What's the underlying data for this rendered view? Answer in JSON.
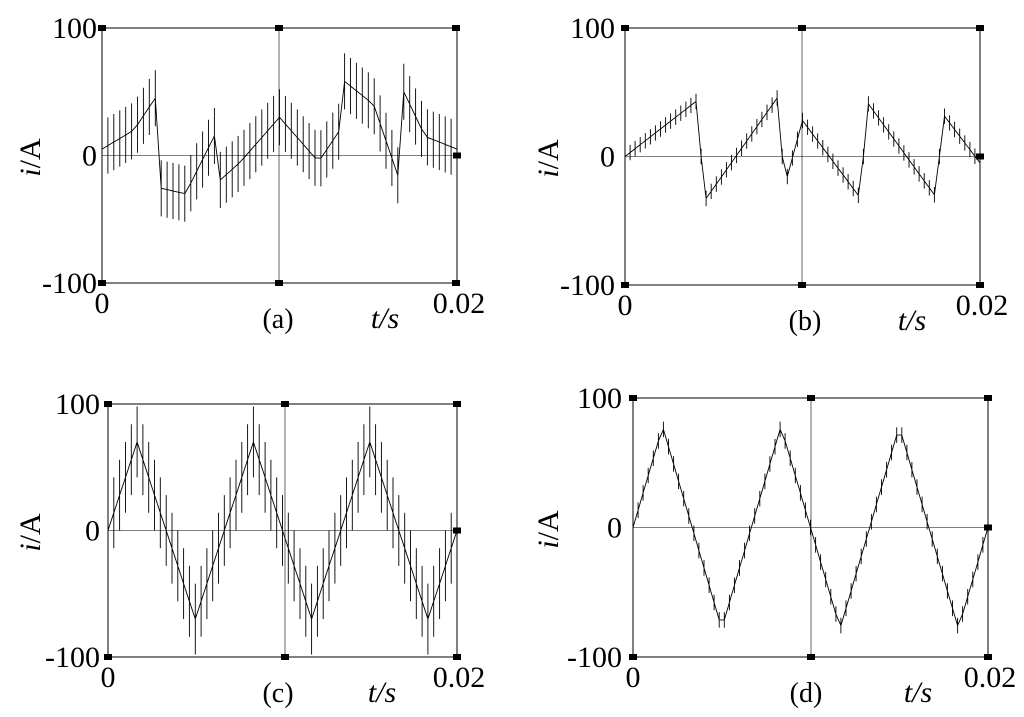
{
  "chart_data": [
    {
      "type": "line",
      "panel": "(a)",
      "xlabel": "t/s",
      "ylabel": "i/A",
      "ylabel_italic": "i",
      "ylabel_unit": "/A",
      "xlim": [
        0,
        0.02
      ],
      "ylim": [
        -100,
        100
      ],
      "x_tick_labels": [
        "0",
        "0.02"
      ],
      "y_tick_labels": [
        "100",
        "0",
        "-100"
      ],
      "grid": false,
      "series": [
        {
          "envelope": "six-step current with large switching ripple",
          "x": [
            0,
            0.0018,
            0.003,
            0.0031,
            0.0047,
            0.0065,
            0.0066,
            0.0078,
            0.01,
            0.0122,
            0.0134,
            0.0135,
            0.0153,
            0.0169,
            0.017,
            0.0182,
            0.02
          ],
          "y": [
            5,
            20,
            45,
            -25,
            -30,
            20,
            -20,
            -5,
            30,
            -5,
            20,
            60,
            40,
            -25,
            50,
            15,
            5
          ],
          "ripple_amplitude": 22
        }
      ]
    },
    {
      "type": "line",
      "panel": "(b)",
      "xlabel": "t/s",
      "ylabel": "i/A",
      "ylabel_italic": "i",
      "ylabel_unit": "/A",
      "xlim": [
        0,
        0.02
      ],
      "ylim": [
        -100,
        100
      ],
      "x_tick_labels": [
        "0",
        "0.02"
      ],
      "y_tick_labels": [
        "100",
        "0",
        "-100"
      ],
      "grid": false,
      "series": [
        {
          "envelope": "six-step current with small switching ripple",
          "x": [
            0,
            0.0042,
            0.0043,
            0.0088,
            0.0089,
            0.0134,
            0.0135,
            0.0177,
            0.0178,
            0.02
          ],
          "y": [
            0,
            45,
            -38,
            50,
            -28,
            45,
            -35,
            45,
            35,
            -5
          ],
          "apex": [
            0.01,
            28
          ],
          "ripple_amplitude": 6
        }
      ]
    },
    {
      "type": "line",
      "panel": "(c)",
      "xlabel": "t/s",
      "ylabel": "i/A",
      "ylabel_italic": "i",
      "ylabel_unit": "/A",
      "xlim": [
        0,
        0.02
      ],
      "ylim": [
        -100,
        100
      ],
      "x_tick_labels": [
        "0",
        "0.02"
      ],
      "y_tick_labels": [
        "100",
        "0",
        "-100"
      ],
      "grid": false,
      "series": [
        {
          "envelope": "triangular current, three periods, large ripple",
          "periods": 3,
          "amplitude": 70,
          "ripple_amplitude": 28
        }
      ]
    },
    {
      "type": "line",
      "panel": "(d)",
      "xlabel": "t/s",
      "ylabel": "i/A",
      "ylabel_italic": "i",
      "ylabel_unit": "/A",
      "xlim": [
        0,
        0.02
      ],
      "ylim": [
        -100,
        100
      ],
      "x_tick_labels": [
        "0",
        "0.02"
      ],
      "y_tick_labels": [
        "100",
        "0",
        "-100"
      ],
      "grid": false,
      "series": [
        {
          "envelope": "triangular current, three periods, small ripple",
          "periods": 3,
          "amplitude": 78,
          "ripple_amplitude": 6
        }
      ]
    }
  ]
}
